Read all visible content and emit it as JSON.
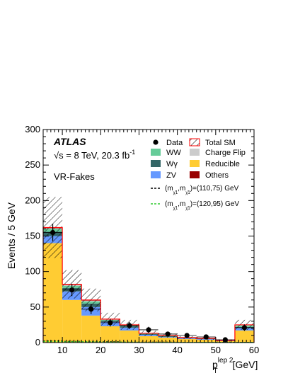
{
  "chart_data": {
    "type": "bar",
    "stacked": true,
    "experiment": "ATLAS",
    "energy_label": "√s = 8 TeV, 20.3 fb",
    "energy_exp": "-1",
    "region_label": "VR-Fakes",
    "ylabel": "Events / 5 GeV",
    "xlabel_main": "p",
    "xlabel_sub": "T",
    "xlabel_sup": "lep 2",
    "xlabel_unit": "[GeV]",
    "xlim": [
      5,
      60
    ],
    "ylim": [
      0,
      300
    ],
    "x_ticks": [
      "10",
      "20",
      "30",
      "40",
      "50",
      "60"
    ],
    "y_ticks": [
      "0",
      "50",
      "100",
      "150",
      "200",
      "250",
      "300"
    ],
    "bin_edges": [
      5,
      10,
      15,
      20,
      25,
      30,
      35,
      40,
      45,
      50,
      55,
      60
    ],
    "series": [
      {
        "name": "Reducible",
        "color": "#ffcc33",
        "values": [
          140,
          60,
          38,
          23,
          17,
          9,
          7,
          5,
          4,
          2,
          17
        ]
      },
      {
        "name": "ZV",
        "color": "#6699ff",
        "values": [
          10,
          12,
          12,
          6,
          4,
          2,
          1,
          1,
          1,
          0.5,
          4
        ]
      },
      {
        "name": "Wγ",
        "color": "#336666",
        "values": [
          6,
          5,
          5,
          2,
          2,
          1,
          1,
          0.5,
          0.5,
          0.3,
          1
        ]
      },
      {
        "name": "WW",
        "color": "#66cc99",
        "values": [
          4,
          3,
          3,
          1,
          1,
          1,
          0.5,
          0.5,
          0.5,
          0.2,
          2
        ]
      },
      {
        "name": "Charge Flip",
        "color": "#cccccc",
        "values": [
          1,
          1,
          1,
          0.5,
          0.5,
          0.3,
          0.3,
          0.2,
          0.2,
          0.1,
          0.5
        ]
      },
      {
        "name": "Others",
        "color": "#990000",
        "values": [
          0.5,
          0.5,
          0.5,
          0.3,
          0.3,
          0.2,
          0.2,
          0.1,
          0.1,
          0.1,
          0.3
        ]
      }
    ],
    "total_sm": {
      "name": "Total SM",
      "color": "#ff0000",
      "values": [
        162,
        82,
        60,
        33,
        25,
        13,
        10,
        7,
        6,
        3,
        25
      ],
      "uncertainty": [
        43,
        20,
        16,
        9,
        7,
        4,
        3,
        2,
        2,
        1.5,
        7
      ]
    },
    "data": {
      "name": "Data",
      "values": [
        155,
        74,
        47,
        28,
        24,
        18,
        12,
        10,
        8,
        4,
        21
      ],
      "errors": [
        12,
        8.6,
        6.9,
        5.3,
        4.9,
        4.2,
        3.5,
        3.2,
        2.8,
        2,
        4.6
      ]
    },
    "signals": [
      {
        "label": "(m",
        "sub1": "χ̃",
        "sub1b": "1",
        "sep": ",m",
        "sub2": "χ̃",
        "sub2b": "1",
        "value": ")=(110,75) GeV",
        "color": "#000000",
        "values": [
          2,
          1.5,
          1,
          1,
          0.5,
          0.5,
          0.5,
          0.3,
          0.3,
          0.2,
          0.2
        ]
      },
      {
        "label": "(m",
        "sub1": "χ̃",
        "sub1b": "1",
        "sep": ",m",
        "sub2": "χ̃",
        "sub2b": "1",
        "value": ")=(120,95) GeV",
        "color": "#33cc33",
        "values": [
          1.5,
          1,
          1,
          0.5,
          0.5,
          0.3,
          0.3,
          0.2,
          0.2,
          0.1,
          0.1
        ]
      }
    ],
    "legend_placement": "top-right"
  }
}
